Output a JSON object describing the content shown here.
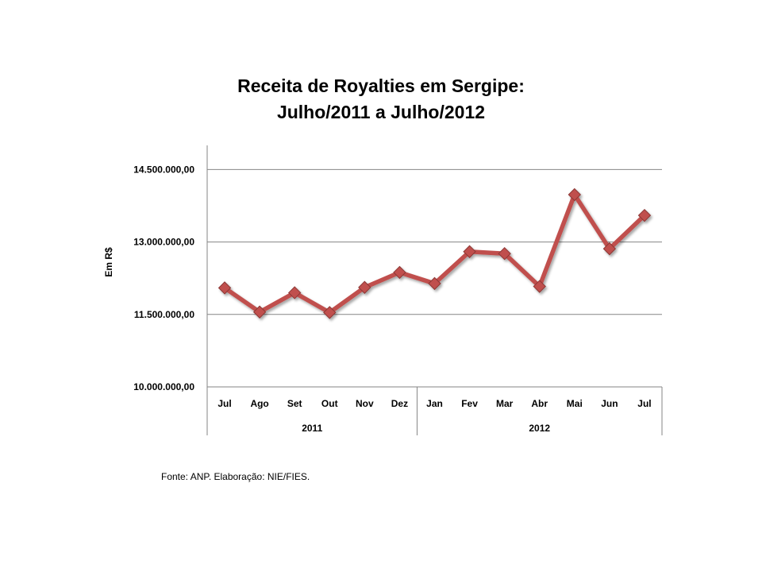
{
  "chart_data": {
    "type": "line",
    "title_lines": [
      "Receita de Royalties em Sergipe:",
      "Julho/2011 a Julho/2012"
    ],
    "ylabel": "Em R$",
    "xlabel": "",
    "ylim": [
      10000000,
      15000000
    ],
    "y_ticks": [
      {
        "value": 10000000,
        "label": "10.000.000,00"
      },
      {
        "value": 11500000,
        "label": "11.500.000,00"
      },
      {
        "value": 13000000,
        "label": "13.000.000,00"
      },
      {
        "value": 14500000,
        "label": "14.500.000,00"
      }
    ],
    "categories": [
      "Jul",
      "Ago",
      "Set",
      "Out",
      "Nov",
      "Dez",
      "Jan",
      "Fev",
      "Mar",
      "Abr",
      "Mai",
      "Jun",
      "Jul"
    ],
    "category_groups": [
      {
        "label": "2011",
        "count": 6
      },
      {
        "label": "2012",
        "count": 7
      }
    ],
    "series": [
      {
        "values": [
          12050000,
          11550000,
          11950000,
          11540000,
          12060000,
          12370000,
          12140000,
          12800000,
          12760000,
          12080000,
          13980000,
          12860000,
          13550000
        ]
      }
    ],
    "grid": true,
    "legend": "none"
  },
  "colors": {
    "line": "#c0504d",
    "marker": "#c0504d",
    "marker_stroke": "#8c3836",
    "grid": "#868686",
    "axis": "#868686"
  },
  "source_note": "Fonte: ANP. Elaboração: NIE/FIES."
}
